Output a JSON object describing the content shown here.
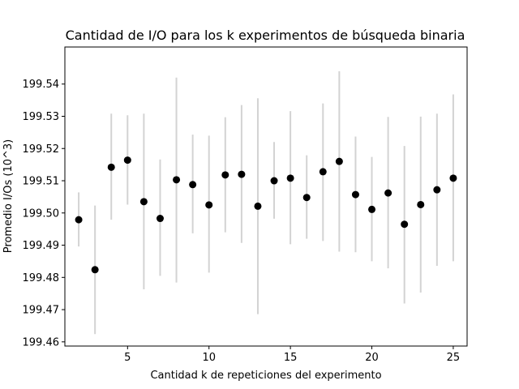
{
  "chart_data": {
    "type": "scatter",
    "title": "Cantidad de I/O para los k experimentos de búsqueda binaria",
    "xlabel": "Cantidad k de repeticiones del experimento",
    "ylabel": "Promedio I/Os (10^3)",
    "xlim": [
      1.15,
      25.85
    ],
    "ylim": [
      199.4587,
      199.5515
    ],
    "xticks": [
      5,
      10,
      15,
      20,
      25
    ],
    "xtick_labels": [
      "5",
      "10",
      "15",
      "20",
      "25"
    ],
    "yticks": [
      199.46,
      199.47,
      199.48,
      199.49,
      199.5,
      199.51,
      199.52,
      199.53,
      199.54
    ],
    "ytick_labels": [
      "199.46",
      "199.47",
      "199.48",
      "199.49",
      "199.50",
      "199.51",
      "199.52",
      "199.53",
      "199.54"
    ],
    "grid": false,
    "marker_color": "#000000",
    "errorbar_color": "#d3d3d3",
    "series": [
      {
        "x": [
          2,
          3,
          4,
          5,
          6,
          7,
          8,
          9,
          10,
          11,
          12,
          13,
          14,
          15,
          16,
          17,
          18,
          19,
          20,
          21,
          22,
          23,
          24,
          25
        ],
        "y": [
          199.4979,
          199.4824,
          199.5142,
          199.5164,
          199.5035,
          199.4983,
          199.5103,
          199.5088,
          199.5025,
          199.5118,
          199.512,
          199.5021,
          199.51,
          199.5108,
          199.5048,
          199.5128,
          199.516,
          199.5057,
          199.5011,
          199.5062,
          199.4965,
          199.5026,
          199.5072,
          199.5108
        ],
        "y_low": [
          199.4896,
          199.4624,
          199.4979,
          199.5026,
          199.4763,
          199.4805,
          199.4784,
          199.4937,
          199.4815,
          199.494,
          199.4907,
          199.4686,
          199.4982,
          199.4903,
          199.492,
          199.4913,
          199.488,
          199.4878,
          199.485,
          199.4828,
          199.4719,
          199.4753,
          199.4836,
          199.485
        ],
        "y_high": [
          199.5064,
          199.5023,
          199.5308,
          199.5303,
          199.5308,
          199.5166,
          199.542,
          199.5243,
          199.524,
          199.5297,
          199.5335,
          199.5356,
          199.522,
          199.5316,
          199.5179,
          199.534,
          199.544,
          199.5237,
          199.5174,
          199.5298,
          199.5208,
          199.5299,
          199.5308,
          199.5368
        ]
      }
    ]
  }
}
